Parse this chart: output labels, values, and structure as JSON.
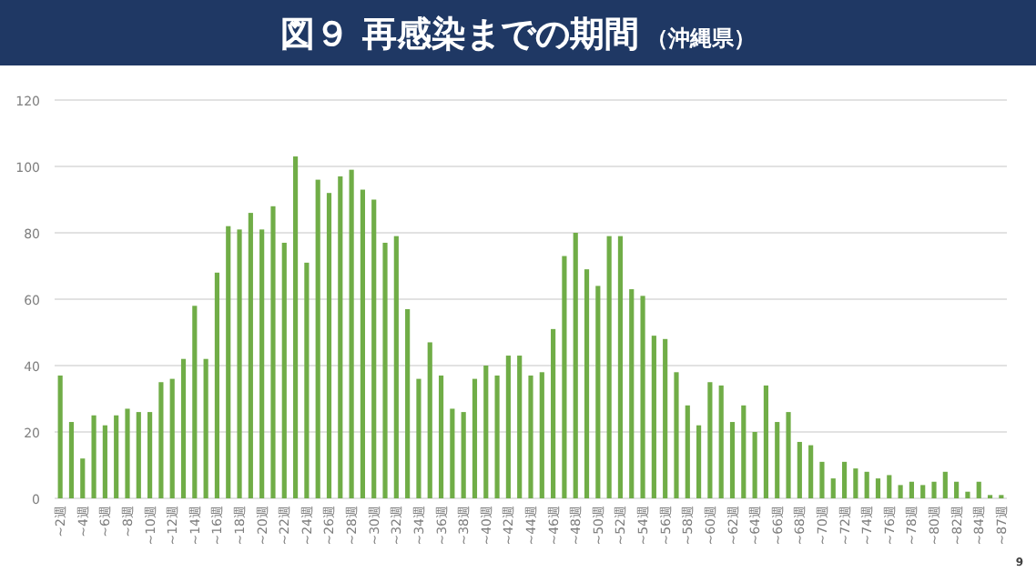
{
  "chart_data": {
    "type": "bar",
    "title": "図９ 再感染までの期間",
    "subtitle": "（沖縄県）",
    "categories": [
      "~2週",
      null,
      "~4週",
      null,
      "~6週",
      null,
      "~8週",
      null,
      "~10週",
      null,
      "~12週",
      null,
      "~14週",
      null,
      "~16週",
      null,
      "~18週",
      null,
      "~20週",
      null,
      "~22週",
      null,
      "~24週",
      null,
      "~26週",
      null,
      "~28週",
      null,
      "~30週",
      null,
      "~32週",
      null,
      "~34週",
      null,
      "~36週",
      null,
      "~38週",
      null,
      "~40週",
      null,
      "~42週",
      null,
      "~44週",
      null,
      "~46週",
      null,
      "~48週",
      null,
      "~50週",
      null,
      "~52週",
      null,
      "~54週",
      null,
      "~56週",
      null,
      "~58週",
      null,
      "~60週",
      null,
      "~62週",
      null,
      "~64週",
      null,
      "~66週",
      null,
      "~68週",
      null,
      "~70週",
      null,
      "~72週",
      null,
      "~74週",
      null,
      "~76週",
      null,
      "~78週",
      null,
      "~80週",
      null,
      "~82週",
      null,
      "~84週",
      null,
      "~87週"
    ],
    "values": [
      37,
      23,
      12,
      25,
      22,
      25,
      27,
      26,
      26,
      35,
      36,
      42,
      58,
      42,
      68,
      82,
      81,
      86,
      81,
      88,
      77,
      103,
      71,
      96,
      92,
      97,
      99,
      93,
      90,
      77,
      79,
      57,
      36,
      47,
      37,
      27,
      26,
      36,
      40,
      37,
      43,
      43,
      37,
      38,
      51,
      73,
      80,
      69,
      64,
      79,
      79,
      63,
      61,
      49,
      48,
      38,
      28,
      22,
      35,
      34,
      23,
      28,
      20,
      34,
      23,
      26,
      17,
      16,
      11,
      6,
      11,
      9,
      8,
      6,
      7,
      4,
      5,
      4,
      5,
      8,
      5,
      2,
      5,
      1,
      1
    ],
    "color": "#70ad47",
    "ylim": [
      0,
      120
    ],
    "yticks": [
      0,
      20,
      40,
      60,
      80,
      100,
      120
    ],
    "grid": "y",
    "annotations": [
      "9"
    ]
  }
}
